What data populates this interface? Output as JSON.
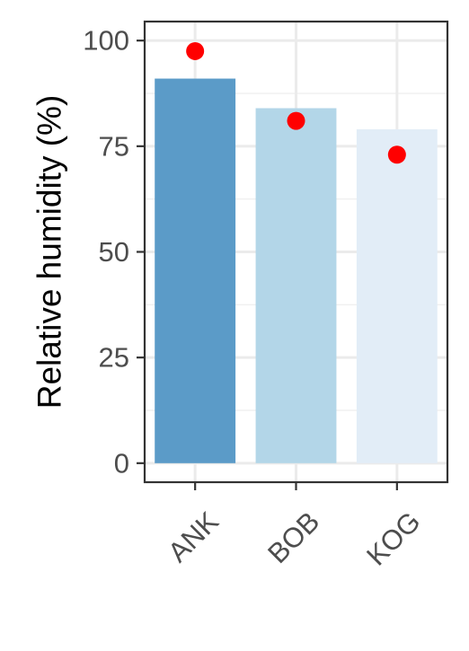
{
  "chart_data": {
    "type": "bar",
    "title": "",
    "xlabel": "",
    "ylabel": "Relative humidity (%)",
    "ylim": [
      -4.5,
      104.5
    ],
    "yticks": [
      0,
      25,
      50,
      75,
      100
    ],
    "grid": true,
    "categories": [
      "ANK",
      "BOB",
      "KOG"
    ],
    "series": [
      {
        "kind": "bar",
        "values": [
          91,
          84,
          79
        ],
        "colors": [
          "#5b9bc8",
          "#b3d6e8",
          "#e2edf7"
        ]
      },
      {
        "kind": "point",
        "values": [
          97.5,
          81,
          73
        ],
        "color": "#ff0000"
      }
    ]
  }
}
